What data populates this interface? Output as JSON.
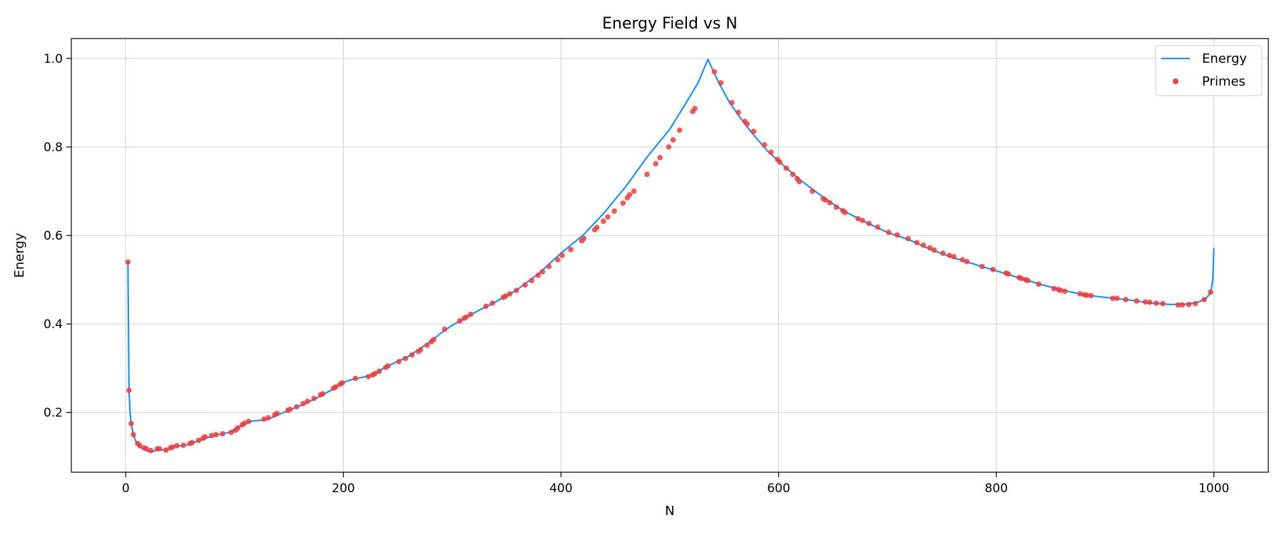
{
  "chart_data": {
    "type": "line",
    "title": "Energy Field vs N",
    "xlabel": "N",
    "ylabel": "Energy",
    "xlim": [
      -50,
      1050
    ],
    "ylim": [
      0.065,
      1.045
    ],
    "xticks": [
      0,
      200,
      400,
      600,
      800,
      1000
    ],
    "yticks": [
      0.2,
      0.4,
      0.6,
      0.8,
      1.0
    ],
    "xtick_labels": [
      "0",
      "200",
      "400",
      "600",
      "800",
      "1000"
    ],
    "ytick_labels": [
      "0.2",
      "0.4",
      "0.6",
      "0.8",
      "1.0"
    ],
    "grid": true,
    "legend_position": "top-right",
    "series": [
      {
        "name": "Energy",
        "kind": "line",
        "color": "#1e90ff",
        "points": [
          [
            2,
            0.54
          ],
          [
            3,
            0.25
          ],
          [
            4,
            0.2
          ],
          [
            5,
            0.175
          ],
          [
            7,
            0.15
          ],
          [
            10,
            0.13
          ],
          [
            14,
            0.12
          ],
          [
            20,
            0.113
          ],
          [
            25,
            0.112
          ],
          [
            30,
            0.116
          ],
          [
            37,
            0.115
          ],
          [
            45,
            0.123
          ],
          [
            55,
            0.126
          ],
          [
            65,
            0.134
          ],
          [
            75,
            0.143
          ],
          [
            85,
            0.15
          ],
          [
            95,
            0.155
          ],
          [
            105,
            0.168
          ],
          [
            115,
            0.18
          ],
          [
            130,
            0.184
          ],
          [
            145,
            0.2
          ],
          [
            160,
            0.215
          ],
          [
            175,
            0.232
          ],
          [
            190,
            0.252
          ],
          [
            200,
            0.268
          ],
          [
            210,
            0.276
          ],
          [
            225,
            0.283
          ],
          [
            240,
            0.304
          ],
          [
            260,
            0.327
          ],
          [
            280,
            0.36
          ],
          [
            290,
            0.38
          ],
          [
            300,
            0.397
          ],
          [
            320,
            0.425
          ],
          [
            340,
            0.45
          ],
          [
            360,
            0.478
          ],
          [
            380,
            0.515
          ],
          [
            400,
            0.56
          ],
          [
            420,
            0.6
          ],
          [
            440,
            0.652
          ],
          [
            460,
            0.712
          ],
          [
            480,
            0.78
          ],
          [
            500,
            0.84
          ],
          [
            515,
            0.9
          ],
          [
            526,
            0.945
          ],
          [
            535,
            0.998
          ],
          [
            545,
            0.945
          ],
          [
            555,
            0.9
          ],
          [
            565,
            0.865
          ],
          [
            575,
            0.833
          ],
          [
            590,
            0.79
          ],
          [
            605,
            0.757
          ],
          [
            620,
            0.725
          ],
          [
            640,
            0.688
          ],
          [
            660,
            0.655
          ],
          [
            680,
            0.63
          ],
          [
            700,
            0.607
          ],
          [
            720,
            0.59
          ],
          [
            740,
            0.568
          ],
          [
            760,
            0.55
          ],
          [
            780,
            0.535
          ],
          [
            800,
            0.52
          ],
          [
            820,
            0.505
          ],
          [
            840,
            0.49
          ],
          [
            860,
            0.477
          ],
          [
            880,
            0.466
          ],
          [
            900,
            0.46
          ],
          [
            920,
            0.455
          ],
          [
            940,
            0.448
          ],
          [
            960,
            0.444
          ],
          [
            975,
            0.445
          ],
          [
            985,
            0.449
          ],
          [
            992,
            0.456
          ],
          [
            997,
            0.47
          ],
          [
            999,
            0.5
          ],
          [
            1000,
            0.572
          ]
        ]
      },
      {
        "name": "Primes",
        "kind": "scatter",
        "color": "#f03c3c",
        "points": [
          [
            2,
            0.54
          ],
          [
            3,
            0.25
          ],
          [
            5,
            0.175
          ],
          [
            7,
            0.15
          ],
          [
            11,
            0.13
          ],
          [
            13,
            0.125
          ],
          [
            17,
            0.12
          ],
          [
            19,
            0.118
          ],
          [
            23,
            0.114
          ],
          [
            29,
            0.118
          ],
          [
            31,
            0.118
          ],
          [
            37,
            0.115
          ],
          [
            41,
            0.12
          ],
          [
            43,
            0.122
          ],
          [
            47,
            0.125
          ],
          [
            53,
            0.126
          ],
          [
            59,
            0.13
          ],
          [
            61,
            0.132
          ],
          [
            67,
            0.137
          ],
          [
            71,
            0.142
          ],
          [
            73,
            0.145
          ],
          [
            79,
            0.148
          ],
          [
            83,
            0.15
          ],
          [
            89,
            0.152
          ],
          [
            97,
            0.155
          ],
          [
            101,
            0.16
          ],
          [
            103,
            0.165
          ],
          [
            107,
            0.172
          ],
          [
            109,
            0.176
          ],
          [
            113,
            0.18
          ],
          [
            127,
            0.185
          ],
          [
            131,
            0.188
          ],
          [
            137,
            0.195
          ],
          [
            139,
            0.198
          ],
          [
            149,
            0.205
          ],
          [
            151,
            0.207
          ],
          [
            157,
            0.213
          ],
          [
            163,
            0.22
          ],
          [
            167,
            0.225
          ],
          [
            173,
            0.232
          ],
          [
            179,
            0.24
          ],
          [
            181,
            0.242
          ],
          [
            191,
            0.255
          ],
          [
            193,
            0.258
          ],
          [
            197,
            0.264
          ],
          [
            199,
            0.267
          ],
          [
            211,
            0.277
          ],
          [
            223,
            0.281
          ],
          [
            227,
            0.285
          ],
          [
            229,
            0.288
          ],
          [
            233,
            0.293
          ],
          [
            239,
            0.302
          ],
          [
            241,
            0.305
          ],
          [
            251,
            0.315
          ],
          [
            257,
            0.322
          ],
          [
            263,
            0.33
          ],
          [
            269,
            0.338
          ],
          [
            271,
            0.342
          ],
          [
            277,
            0.352
          ],
          [
            281,
            0.36
          ],
          [
            283,
            0.365
          ],
          [
            293,
            0.388
          ],
          [
            307,
            0.407
          ],
          [
            311,
            0.413
          ],
          [
            313,
            0.416
          ],
          [
            317,
            0.422
          ],
          [
            331,
            0.44
          ],
          [
            337,
            0.447
          ],
          [
            347,
            0.46
          ],
          [
            349,
            0.463
          ],
          [
            353,
            0.468
          ],
          [
            359,
            0.476
          ],
          [
            367,
            0.488
          ],
          [
            373,
            0.498
          ],
          [
            379,
            0.51
          ],
          [
            383,
            0.518
          ],
          [
            389,
            0.53
          ],
          [
            397,
            0.545
          ],
          [
            401,
            0.555
          ],
          [
            409,
            0.568
          ],
          [
            419,
            0.588
          ],
          [
            421,
            0.593
          ],
          [
            431,
            0.613
          ],
          [
            433,
            0.618
          ],
          [
            439,
            0.632
          ],
          [
            443,
            0.642
          ],
          [
            449,
            0.655
          ],
          [
            457,
            0.673
          ],
          [
            461,
            0.685
          ],
          [
            463,
            0.692
          ],
          [
            467,
            0.7
          ],
          [
            479,
            0.738
          ],
          [
            487,
            0.762
          ],
          [
            491,
            0.776
          ],
          [
            499,
            0.8
          ],
          [
            503,
            0.816
          ],
          [
            509,
            0.838
          ],
          [
            521,
            0.88
          ],
          [
            523,
            0.887
          ],
          [
            541,
            0.97
          ],
          [
            547,
            0.945
          ],
          [
            557,
            0.9
          ],
          [
            563,
            0.878
          ],
          [
            569,
            0.858
          ],
          [
            571,
            0.852
          ],
          [
            577,
            0.835
          ],
          [
            587,
            0.805
          ],
          [
            593,
            0.788
          ],
          [
            599,
            0.772
          ],
          [
            601,
            0.766
          ],
          [
            607,
            0.752
          ],
          [
            613,
            0.738
          ],
          [
            617,
            0.728
          ],
          [
            619,
            0.722
          ],
          [
            631,
            0.7
          ],
          [
            641,
            0.683
          ],
          [
            643,
            0.68
          ],
          [
            647,
            0.674
          ],
          [
            653,
            0.664
          ],
          [
            659,
            0.656
          ],
          [
            661,
            0.652
          ],
          [
            673,
            0.638
          ],
          [
            677,
            0.634
          ],
          [
            683,
            0.627
          ],
          [
            691,
            0.619
          ],
          [
            701,
            0.607
          ],
          [
            709,
            0.601
          ],
          [
            719,
            0.593
          ],
          [
            727,
            0.584
          ],
          [
            733,
            0.578
          ],
          [
            739,
            0.572
          ],
          [
            743,
            0.567
          ],
          [
            751,
            0.56
          ],
          [
            757,
            0.555
          ],
          [
            761,
            0.552
          ],
          [
            769,
            0.545
          ],
          [
            773,
            0.541
          ],
          [
            787,
            0.53
          ],
          [
            797,
            0.523
          ],
          [
            809,
            0.515
          ],
          [
            811,
            0.513
          ],
          [
            821,
            0.505
          ],
          [
            823,
            0.503
          ],
          [
            827,
            0.5
          ],
          [
            829,
            0.498
          ],
          [
            839,
            0.49
          ],
          [
            853,
            0.48
          ],
          [
            857,
            0.478
          ],
          [
            859,
            0.476
          ],
          [
            863,
            0.474
          ],
          [
            877,
            0.468
          ],
          [
            881,
            0.466
          ],
          [
            883,
            0.465
          ],
          [
            887,
            0.464
          ],
          [
            907,
            0.458
          ],
          [
            911,
            0.458
          ],
          [
            919,
            0.455
          ],
          [
            929,
            0.452
          ],
          [
            937,
            0.45
          ],
          [
            941,
            0.449
          ],
          [
            947,
            0.447
          ],
          [
            953,
            0.446
          ],
          [
            967,
            0.443
          ],
          [
            971,
            0.443
          ],
          [
            977,
            0.444
          ],
          [
            983,
            0.446
          ],
          [
            991,
            0.455
          ],
          [
            997,
            0.472
          ]
        ]
      }
    ]
  }
}
